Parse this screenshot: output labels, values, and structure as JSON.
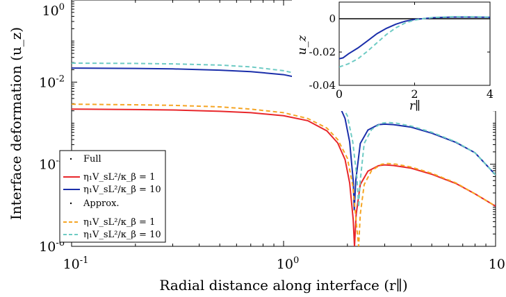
{
  "chart_data": [
    {
      "type": "line",
      "title": "",
      "xlabel": "Radial distance along interface (r∥)",
      "ylabel": "Interface deformation (u_z)",
      "xscale": "log",
      "yscale": "log",
      "xlim": [
        0.1,
        10
      ],
      "ylim": [
        1e-06,
        1
      ],
      "x_ticks": [
        {
          "value": 0.1,
          "base": "10",
          "exp": "-1"
        },
        {
          "value": 1,
          "base": "10",
          "exp": "0"
        },
        {
          "value": 10,
          "base": "10",
          "exp": "1"
        }
      ],
      "y_ticks": [
        {
          "value": 1e-06,
          "base": "10",
          "exp": "-6"
        },
        {
          "value": 0.0001,
          "base": "10",
          "exp": "-4"
        },
        {
          "value": 0.01,
          "base": "10",
          "exp": "-2"
        },
        {
          "value": 1,
          "base": "10",
          "exp": "0"
        }
      ],
      "grid": false,
      "legend_position": "bottom-left",
      "legend": {
        "full_label": "Full",
        "approx_label": "Approx.",
        "entries": [
          {
            "group": "full",
            "label": "η₁V_sL²/κ_β = 1"
          },
          {
            "group": "full",
            "label": "η₁V_sL²/κ_β = 10"
          },
          {
            "group": "approx",
            "label": "η₁V_sL²/κ_β = 1"
          },
          {
            "group": "approx",
            "label": "η₁V_sL²/κ_β = 10"
          }
        ]
      },
      "series": [
        {
          "group": "full",
          "param": 1,
          "color": "#e8262a",
          "dash": "solid",
          "points": [
            [
              0.1,
              0.0022
            ],
            [
              0.2,
              0.00215
            ],
            [
              0.3,
              0.0021
            ],
            [
              0.5,
              0.00195
            ],
            [
              0.7,
              0.0018
            ],
            [
              1.0,
              0.00152
            ],
            [
              1.3,
              0.00115
            ],
            [
              1.6,
              0.00065
            ],
            [
              1.8,
              0.00033
            ],
            [
              1.95,
              0.00013
            ],
            [
              2.05,
              3.5e-05
            ],
            [
              2.13,
              4.5e-06
            ],
            [
              2.16,
              1e-06
            ],
            [
              2.2,
              6e-06
            ],
            [
              2.3,
              3.2e-05
            ],
            [
              2.5,
              6.8e-05
            ],
            [
              2.8,
              9.2e-05
            ],
            [
              3.0,
              9.65e-05
            ],
            [
              3.3,
              9.3e-05
            ],
            [
              4.0,
              8e-05
            ],
            [
              5.0,
              5.7e-05
            ],
            [
              6.5,
              3.4e-05
            ],
            [
              8.0,
              1.9e-05
            ],
            [
              10.0,
              9.5e-06
            ]
          ]
        },
        {
          "group": "full",
          "param": 10,
          "color": "#1a2eaa",
          "dash": "solid",
          "points": [
            [
              0.1,
              0.022
            ],
            [
              0.2,
              0.0215
            ],
            [
              0.3,
              0.021
            ],
            [
              0.5,
              0.0195
            ],
            [
              0.7,
              0.018
            ],
            [
              1.0,
              0.0152
            ],
            [
              1.3,
              0.0115
            ],
            [
              1.6,
              0.0065
            ],
            [
              1.8,
              0.0033
            ],
            [
              1.95,
              0.0013
            ],
            [
              2.05,
              0.00035
            ],
            [
              2.13,
              4e-05
            ],
            [
              2.155,
              7.5e-06
            ],
            [
              2.19,
              4e-05
            ],
            [
              2.3,
              0.00032
            ],
            [
              2.5,
              0.00068
            ],
            [
              2.8,
              0.00092
            ],
            [
              3.0,
              0.00095
            ],
            [
              3.3,
              0.00092
            ],
            [
              4.0,
              0.0008
            ],
            [
              5.0,
              0.00057
            ],
            [
              6.5,
              0.00034
            ],
            [
              8.0,
              0.00019
            ],
            [
              10.0,
              5.5e-05
            ]
          ]
        },
        {
          "group": "approx",
          "param": 1,
          "color": "#f5a524",
          "dash": "dashed",
          "points": [
            [
              0.1,
              0.0029
            ],
            [
              0.2,
              0.0028
            ],
            [
              0.3,
              0.00272
            ],
            [
              0.5,
              0.0025
            ],
            [
              0.7,
              0.0022
            ],
            [
              1.0,
              0.0018
            ],
            [
              1.3,
              0.0013
            ],
            [
              1.6,
              0.00076
            ],
            [
              1.8,
              0.0004
            ],
            [
              2.0,
              0.00014
            ],
            [
              2.12,
              3e-05
            ],
            [
              2.22,
              2.5e-06
            ],
            [
              2.26,
              1e-06
            ],
            [
              2.3,
              6e-06
            ],
            [
              2.4,
              3.2e-05
            ],
            [
              2.6,
              7e-05
            ],
            [
              2.9,
              0.0001
            ],
            [
              3.1,
              0.000104
            ],
            [
              3.4,
              0.0001
            ],
            [
              4.0,
              8.5e-05
            ],
            [
              5.0,
              6e-05
            ],
            [
              6.5,
              3.5e-05
            ],
            [
              8.0,
              1.9e-05
            ],
            [
              10.0,
              9.5e-06
            ]
          ]
        },
        {
          "group": "approx",
          "param": 10,
          "color": "#6ecbc4",
          "dash": "dashed",
          "points": [
            [
              0.1,
              0.029
            ],
            [
              0.2,
              0.0285
            ],
            [
              0.3,
              0.0278
            ],
            [
              0.5,
              0.026
            ],
            [
              0.7,
              0.0235
            ],
            [
              1.0,
              0.019
            ],
            [
              1.3,
              0.014
            ],
            [
              1.6,
              0.008
            ],
            [
              1.8,
              0.0042
            ],
            [
              2.0,
              0.0015
            ],
            [
              2.12,
              0.00035
            ],
            [
              2.22,
              4.5e-05
            ],
            [
              2.26,
              9e-06
            ],
            [
              2.3,
              4e-05
            ],
            [
              2.4,
              0.00032
            ],
            [
              2.6,
              0.0007
            ],
            [
              2.9,
              0.001
            ],
            [
              3.1,
              0.00104
            ],
            [
              3.4,
              0.001
            ],
            [
              4.0,
              0.00085
            ],
            [
              5.0,
              0.0006
            ],
            [
              6.5,
              0.00035
            ],
            [
              8.0,
              0.00019
            ],
            [
              10.0,
              5.5e-05
            ]
          ]
        }
      ]
    },
    {
      "type": "line",
      "title": "",
      "xlabel": "r∥",
      "ylabel": "u_z",
      "xscale": "linear",
      "yscale": "linear",
      "xlim": [
        0,
        4
      ],
      "ylim": [
        -0.04,
        0.01
      ],
      "x_ticks": [
        "0",
        "2",
        "4"
      ],
      "x_tick_values": [
        0,
        2,
        4
      ],
      "y_ticks": [
        "0",
        "-0.02",
        "-0.04"
      ],
      "y_tick_values": [
        0,
        -0.02,
        -0.04
      ],
      "grid": false,
      "legend_position": "none",
      "zero_line": true,
      "series": [
        {
          "group": "full",
          "param": 10,
          "color": "#1a2eaa",
          "dash": "solid",
          "points": [
            [
              0,
              -0.024
            ],
            [
              0.1,
              -0.0235
            ],
            [
              0.25,
              -0.021
            ],
            [
              0.5,
              -0.0175
            ],
            [
              0.75,
              -0.0133
            ],
            [
              1.0,
              -0.009
            ],
            [
              1.25,
              -0.0058
            ],
            [
              1.5,
              -0.0033
            ],
            [
              1.75,
              -0.0015
            ],
            [
              2.0,
              -0.0004
            ],
            [
              2.2,
              0.0
            ],
            [
              2.5,
              0.0006
            ],
            [
              3.0,
              0.001
            ],
            [
              3.5,
              0.001
            ],
            [
              4.0,
              0.0009
            ]
          ]
        },
        {
          "group": "approx",
          "param": 10,
          "color": "#6ecbc4",
          "dash": "dashed",
          "points": [
            [
              0,
              -0.029
            ],
            [
              0.25,
              -0.027
            ],
            [
              0.5,
              -0.024
            ],
            [
              0.75,
              -0.0195
            ],
            [
              1.0,
              -0.0145
            ],
            [
              1.25,
              -0.0095
            ],
            [
              1.5,
              -0.0055
            ],
            [
              1.75,
              -0.0025
            ],
            [
              2.0,
              -0.0008
            ],
            [
              2.25,
              0.0001
            ],
            [
              2.5,
              0.0008
            ],
            [
              3.0,
              0.0012
            ],
            [
              3.5,
              0.0012
            ],
            [
              4.0,
              0.001
            ]
          ]
        }
      ]
    }
  ]
}
